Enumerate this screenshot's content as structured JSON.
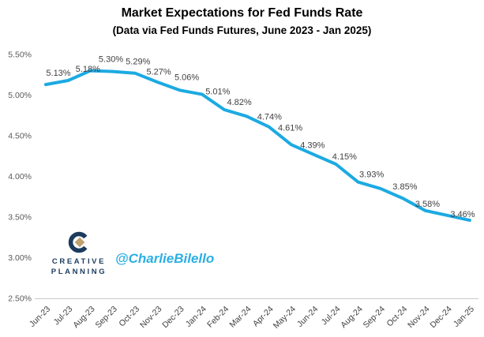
{
  "header": {
    "title": "Market Expectations for Fed Funds Rate",
    "subtitle": "(Data via Fed Funds Futures, June 2023 - Jan 2025)"
  },
  "branding": {
    "logo_line1": "CREATIVE",
    "logo_line2": "PLANNING",
    "handle": "@CharlieBilello"
  },
  "colors": {
    "line": "#1CAAE2",
    "data_label": "#404040",
    "axis_label": "#595959",
    "axis_line": "#C9C9C9",
    "logo_navy": "#1C3C5E",
    "logo_gold": "#C0A26F",
    "handle_cyan": "#2BAFE4"
  },
  "chart_data": {
    "type": "line",
    "title": "Market Expectations for Fed Funds Rate",
    "subtitle": "(Data via Fed Funds Futures, June 2023 - Jan 2025)",
    "xlabel": "",
    "ylabel": "",
    "categories": [
      "Jun-23",
      "Jul-23",
      "Aug-23",
      "Sep-23",
      "Oct-23",
      "Nov-23",
      "Dec-23",
      "Jan-24",
      "Feb-24",
      "Mar-24",
      "Apr-24",
      "May-24",
      "Jun-24",
      "Jul-24",
      "Aug-24",
      "Sep-24",
      "Oct-24",
      "Nov-24",
      "Dec-24",
      "Jan-25"
    ],
    "values": [
      5.13,
      5.18,
      5.3,
      5.29,
      5.27,
      5.16,
      5.06,
      5.01,
      4.82,
      4.74,
      4.61,
      4.39,
      4.27,
      4.15,
      3.93,
      3.85,
      3.73,
      3.58,
      3.52,
      3.46
    ],
    "point_labels": [
      "5.13%",
      "5.18%",
      "5.30%",
      "5.29%",
      "5.27%",
      null,
      "5.06%",
      "5.01%",
      "4.82%",
      "4.74%",
      "4.61%",
      "4.39%",
      null,
      "4.15%",
      "3.93%",
      "3.85%",
      null,
      "3.58%",
      null,
      "3.46%"
    ],
    "y_ticks": [
      "5.50%",
      "5.00%",
      "4.50%",
      "4.00%",
      "3.50%",
      "3.00%",
      "2.50%"
    ],
    "ylim": [
      2.5,
      5.5
    ],
    "grid": false,
    "legend": false
  }
}
